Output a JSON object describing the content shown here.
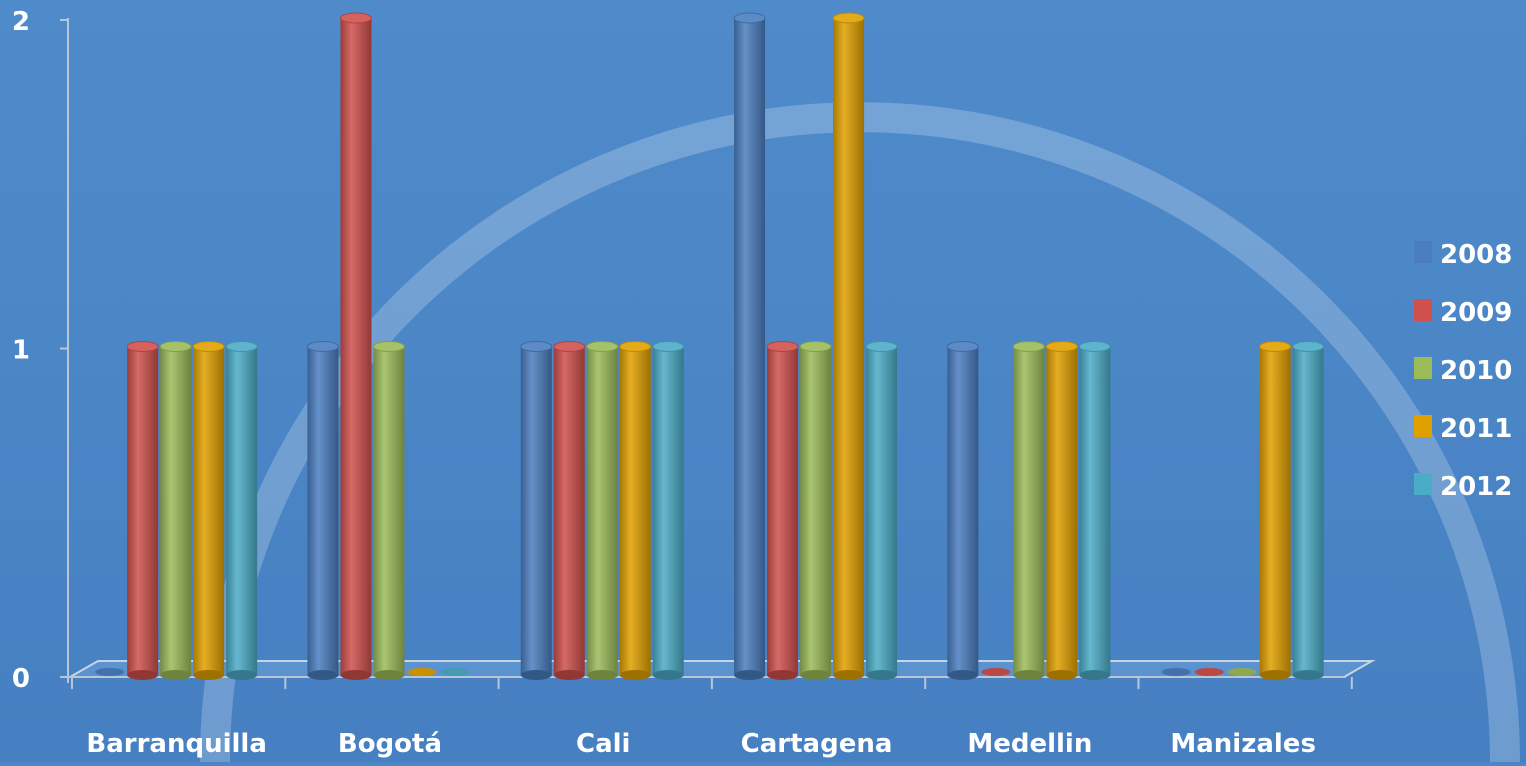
{
  "chart_data": {
    "type": "bar",
    "title": "",
    "xlabel": "",
    "ylabel": "",
    "ylim": [
      0,
      2
    ],
    "y_ticks": [
      "0",
      "1",
      "2"
    ],
    "categories": [
      "Barranquilla",
      "Bogotá",
      "Cali",
      "Cartagena",
      "Medellin",
      "Manizales"
    ],
    "series": [
      {
        "name": "2008",
        "color": "#4a7ec0",
        "values": [
          0,
          1,
          1,
          2,
          1,
          0
        ]
      },
      {
        "name": "2009",
        "color": "#cf504c",
        "values": [
          1,
          2,
          1,
          1,
          0,
          0
        ]
      },
      {
        "name": "2010",
        "color": "#9bbb59",
        "values": [
          1,
          1,
          1,
          1,
          1,
          0
        ]
      },
      {
        "name": "2011",
        "color": "#e0a000",
        "values": [
          1,
          0,
          1,
          2,
          1,
          1
        ]
      },
      {
        "name": "2012",
        "color": "#4bacc6",
        "values": [
          1,
          0,
          1,
          1,
          1,
          1
        ]
      }
    ],
    "grid": false,
    "legend_position": "right"
  }
}
